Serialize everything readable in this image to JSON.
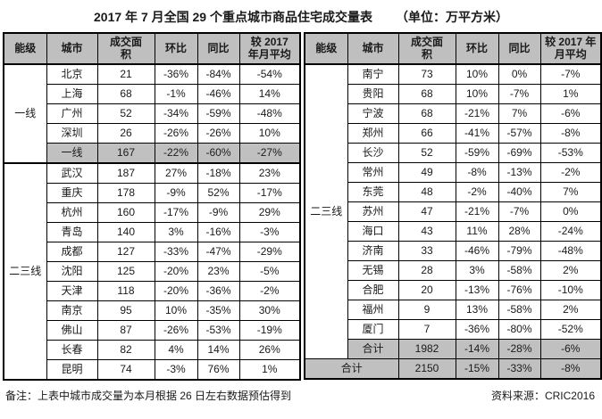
{
  "title": {
    "text": "2017 年 7 月全国 29 个重点城市商品住宅成交量表",
    "unit": "（单位：万平方米）"
  },
  "colors": {
    "header_bg": "#bfbfbf",
    "subtotal_bg": "#c0c0c0",
    "border": "#000000",
    "background": "#ffffff"
  },
  "left_table": {
    "headers": {
      "tier": "能级",
      "city": "城市",
      "area": "成交面\n积",
      "mom": "环比",
      "yoy": "同比",
      "avg": "较 2017\n年月平均"
    },
    "groups": [
      {
        "tier": "一线",
        "rows": [
          [
            "北京",
            "21",
            "-36%",
            "-84%",
            "-54%"
          ],
          [
            "上海",
            "68",
            "-1%",
            "-46%",
            "14%"
          ],
          [
            "广州",
            "52",
            "-34%",
            "-59%",
            "-48%"
          ],
          [
            "深圳",
            "26",
            "-26%",
            "-26%",
            "10%"
          ]
        ],
        "subtotal": [
          "一线",
          "167",
          "-22%",
          "-60%",
          "-27%"
        ]
      },
      {
        "tier": "二三线",
        "rows": [
          [
            "武汉",
            "187",
            "27%",
            "-18%",
            "23%"
          ],
          [
            "重庆",
            "178",
            "-9%",
            "52%",
            "-17%"
          ],
          [
            "杭州",
            "160",
            "-17%",
            "-9%",
            "29%"
          ],
          [
            "青岛",
            "140",
            "3%",
            "-16%",
            "-3%"
          ],
          [
            "成都",
            "127",
            "-33%",
            "-47%",
            "-29%"
          ],
          [
            "沈阳",
            "125",
            "-20%",
            "23%",
            "-5%"
          ],
          [
            "天津",
            "118",
            "-20%",
            "-36%",
            "-2%"
          ],
          [
            "南京",
            "95",
            "10%",
            "-35%",
            "30%"
          ],
          [
            "佛山",
            "87",
            "-26%",
            "-53%",
            "-19%"
          ],
          [
            "长春",
            "82",
            "4%",
            "14%",
            "26%"
          ],
          [
            "昆明",
            "74",
            "-3%",
            "76%",
            "1%"
          ]
        ],
        "subtotal": null
      }
    ]
  },
  "right_table": {
    "headers": {
      "tier": "能级",
      "city": "城市",
      "area": "成交面\n积",
      "mom": "环比",
      "yoy": "同比",
      "avg": "较 2017 年\n月平均"
    },
    "tier": "二三线",
    "rows": [
      [
        "南宁",
        "73",
        "10%",
        "0%",
        "-7%"
      ],
      [
        "贵阳",
        "68",
        "10%",
        "-7%",
        "1%"
      ],
      [
        "宁波",
        "68",
        "-21%",
        "7%",
        "-6%"
      ],
      [
        "郑州",
        "66",
        "-41%",
        "-57%",
        "-8%"
      ],
      [
        "长沙",
        "52",
        "-59%",
        "-69%",
        "-53%"
      ],
      [
        "常州",
        "49",
        "-8%",
        "-13%",
        "-2%"
      ],
      [
        "东莞",
        "48",
        "-2%",
        "-40%",
        "7%"
      ],
      [
        "苏州",
        "47",
        "-21%",
        "-7%",
        "0%"
      ],
      [
        "海口",
        "43",
        "11%",
        "28%",
        "-24%"
      ],
      [
        "济南",
        "33",
        "-46%",
        "-79%",
        "-48%"
      ],
      [
        "无锡",
        "28",
        "3%",
        "-58%",
        "2%"
      ],
      [
        "合肥",
        "20",
        "-13%",
        "-76%",
        "-10%"
      ],
      [
        "福州",
        "9",
        "13%",
        "-58%",
        "2%"
      ],
      [
        "厦门",
        "7",
        "-36%",
        "-80%",
        "-52%"
      ]
    ],
    "subtotal": [
      "合计",
      "1982",
      "-14%",
      "-28%",
      "-6%"
    ],
    "total": [
      "合计",
      "2150",
      "-15%",
      "-33%",
      "-8%"
    ]
  },
  "footer": {
    "note": "备注：上表中城市成交量为本月根据 26 日左右数据预估得到",
    "source": "资料来源：CRIC2016"
  }
}
